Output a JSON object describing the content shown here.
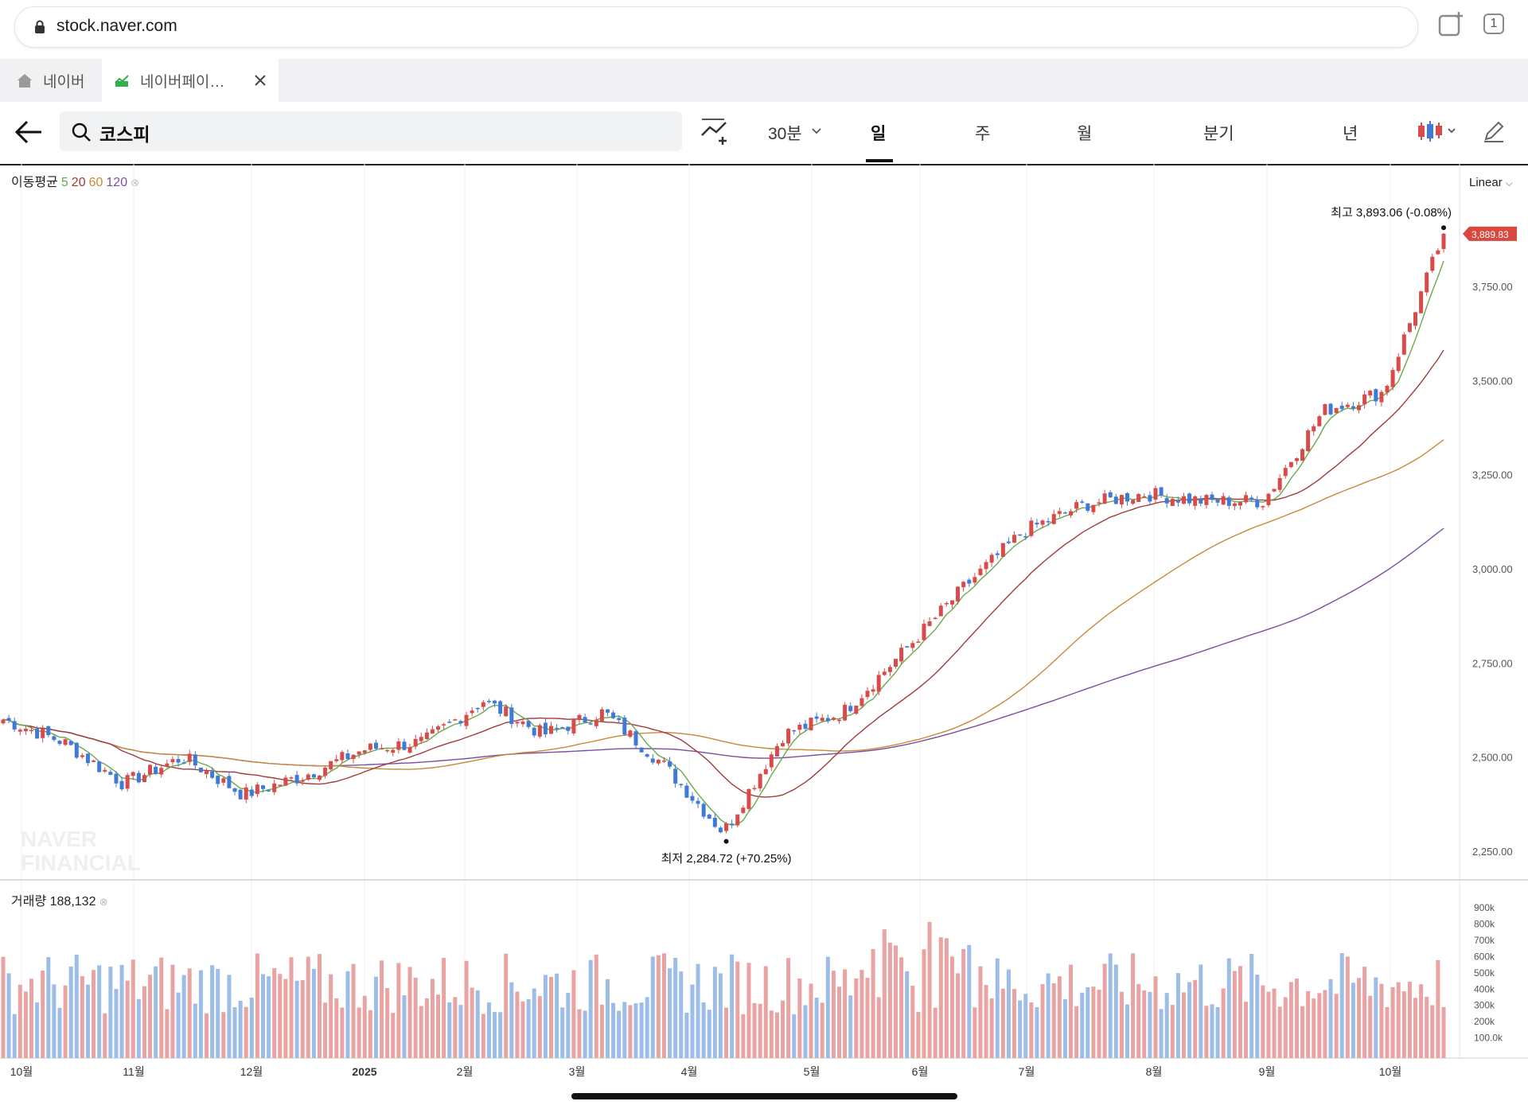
{
  "browser": {
    "url": "stock.naver.com",
    "tab_count": "1",
    "tabs": [
      {
        "label": "네이버",
        "icon": "home-icon"
      },
      {
        "label": "네이버페이…",
        "icon": "chart-favicon-icon"
      }
    ]
  },
  "toolbar": {
    "search_value": "코스피",
    "interval_label": "30분",
    "periods": [
      "일",
      "주",
      "월",
      "분기",
      "년"
    ],
    "active_period": "일"
  },
  "chart_data": [
    {
      "type": "candlestick",
      "title": "",
      "scale_label": "Linear",
      "y_ticks": [
        2250,
        2500,
        2750,
        3000,
        3250,
        3500,
        3750
      ],
      "y_tick_labels": [
        "2,250.00",
        "2,500.00",
        "2,750.00",
        "3,000.00",
        "3,250.00",
        "3,500.00",
        "3,750.00"
      ],
      "ylim": [
        2180,
        4000
      ],
      "x_tick_labels": [
        "10월",
        "11월",
        "12월",
        "2025",
        "2월",
        "3월",
        "4월",
        "5월",
        "6월",
        "7월",
        "8월",
        "9월",
        "10월"
      ],
      "moving_average_label": "이동평균",
      "moving_average_periods": [
        "5",
        "20",
        "60",
        "120"
      ],
      "current_value_label": "3,889.83",
      "current_value": 3889.83,
      "max_annotation": {
        "label": "최고",
        "value": "3,893.06 (-0.08%)",
        "price": 3893.06
      },
      "min_annotation": {
        "label": "최저",
        "value": "2,284.72 (+70.25%)",
        "price": 2284.72
      },
      "watermark": [
        "NAVER",
        "FINANCIAL"
      ],
      "close_points": [
        {
          "month": "10월",
          "value": 2600
        },
        {
          "month": "11월",
          "value": 2540
        },
        {
          "month": "11월 중",
          "value": 2430
        },
        {
          "month": "12월",
          "value": 2500
        },
        {
          "month": "12월 중",
          "value": 2400
        },
        {
          "month": "2025",
          "value": 2450
        },
        {
          "month": "2025 중",
          "value": 2520
        },
        {
          "month": "2월",
          "value": 2540
        },
        {
          "month": "2월 중",
          "value": 2650
        },
        {
          "month": "3월",
          "value": 2560
        },
        {
          "month": "3월 중",
          "value": 2620
        },
        {
          "month": "4월",
          "value": 2480
        },
        {
          "month": "4월 중",
          "value": 2300
        },
        {
          "month": "5월",
          "value": 2560
        },
        {
          "month": "5월 중",
          "value": 2620
        },
        {
          "month": "6월",
          "value": 2780
        },
        {
          "month": "6월 중",
          "value": 2950
        },
        {
          "month": "7월",
          "value": 3100
        },
        {
          "month": "7월 중",
          "value": 3170
        },
        {
          "month": "8월",
          "value": 3200
        },
        {
          "month": "8월 중",
          "value": 3180
        },
        {
          "month": "9월",
          "value": 3180
        },
        {
          "month": "9월 중",
          "value": 3420
        },
        {
          "month": "10월",
          "value": 3470
        },
        {
          "month": "10월 말",
          "value": 3889.83
        }
      ]
    },
    {
      "type": "bar",
      "title": "",
      "volume_label": "거래량",
      "volume_value": "188,132",
      "y_tick_labels": [
        "900k",
        "800k",
        "700k",
        "600k",
        "500k",
        "400k",
        "300k",
        "200k",
        "100.0k"
      ],
      "y_ticks": [
        900000,
        800000,
        700000,
        600000,
        500000,
        400000,
        300000,
        200000,
        100000
      ],
      "ylim": [
        0,
        950000
      ]
    }
  ],
  "colors": {
    "up": "#d94a4a",
    "down": "#3f7bd6",
    "ma5": "#6aa84f",
    "ma20": "#a33a3a",
    "ma60": "#c8893a",
    "ma120": "#7b4fa0",
    "badge": "#d9473f"
  }
}
